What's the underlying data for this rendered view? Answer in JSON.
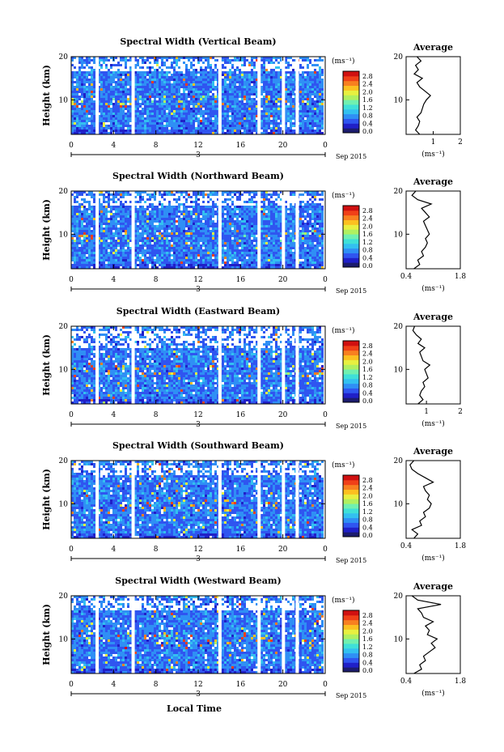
{
  "figure": {
    "xlabel": "Local Time",
    "date_label": "Sep 2015",
    "ylabel": "Height (km)",
    "average_title": "Average",
    "units": "(ms⁻¹)",
    "colorbar_ticks": [
      "2.8",
      "2.4",
      "2.0",
      "1.6",
      "1.2",
      "0.8",
      "0.4",
      "0.0"
    ],
    "colormap": [
      "#1c1c6e",
      "#2020c8",
      "#2f55f0",
      "#2f8ff5",
      "#33c0f0",
      "#3fe0d8",
      "#70f0b0",
      "#b0f060",
      "#e8f040",
      "#fcc020",
      "#f88020",
      "#f04018",
      "#d01010"
    ],
    "gap_color": "#ffffff"
  },
  "chart_data": [
    {
      "type": "heatmap",
      "title": "Spectral Width (Vertical Beam)",
      "xlabel": "Local Time",
      "ylabel": "Height (km)",
      "x_ticks": [
        "0",
        "4",
        "8",
        "12",
        "16",
        "20",
        "0"
      ],
      "y_ticks": [
        "20",
        "10"
      ],
      "day_marker": "3",
      "xlim": [
        0,
        24
      ],
      "ylim": [
        2,
        20
      ],
      "data_gaps_hours": [
        2.3,
        5.7,
        13.9,
        17.6,
        19.9,
        21.2
      ],
      "colorbar": {
        "label": "(ms⁻¹)",
        "ticks": [
          "2.8",
          "2.4",
          "2.0",
          "1.6",
          "1.2",
          "0.8",
          "0.4",
          "0.0"
        ]
      },
      "average": {
        "title": "Average",
        "xlabel": "(ms⁻¹)",
        "xticks": [
          "1",
          "2"
        ],
        "xlim": [
          0.0,
          2.0
        ],
        "yticks": [
          "20",
          "10"
        ],
        "height_km": [
          2,
          3,
          4,
          5,
          6,
          7,
          8,
          9,
          10,
          11,
          12,
          13,
          14,
          15,
          16,
          17,
          18,
          19,
          20
        ],
        "width_ms": [
          0.5,
          0.35,
          0.45,
          0.5,
          0.4,
          0.55,
          0.6,
          0.65,
          0.75,
          0.9,
          0.7,
          0.5,
          0.4,
          0.6,
          0.3,
          0.45,
          0.35,
          0.55,
          0.4
        ]
      }
    },
    {
      "type": "heatmap",
      "title": "Spectral Width (Northward Beam)",
      "xlabel": "Local Time",
      "ylabel": "Height (km)",
      "x_ticks": [
        "0",
        "4",
        "8",
        "12",
        "16",
        "20",
        "0"
      ],
      "y_ticks": [
        "20",
        "10"
      ],
      "day_marker": "3",
      "xlim": [
        0,
        24
      ],
      "ylim": [
        2,
        20
      ],
      "data_gaps_hours": [
        2.3,
        5.7,
        13.9,
        17.6,
        19.9,
        21.2
      ],
      "colorbar": {
        "label": "(ms⁻¹)",
        "ticks": [
          "2.8",
          "2.4",
          "2.0",
          "1.6",
          "1.2",
          "0.8",
          "0.4",
          "0.0"
        ]
      },
      "average": {
        "title": "Average",
        "xlabel": "(ms⁻¹)",
        "xticks": [
          "0.4",
          "1.8"
        ],
        "xlim": [
          0.4,
          1.8
        ],
        "yticks": [
          "20",
          "10"
        ],
        "height_km": [
          2,
          3,
          4,
          5,
          6,
          7,
          8,
          9,
          10,
          11,
          12,
          13,
          14,
          15,
          16,
          17,
          18,
          19,
          20
        ],
        "width_ms": [
          0.6,
          0.75,
          0.7,
          0.85,
          0.8,
          0.9,
          0.95,
          0.9,
          1.0,
          0.95,
          0.9,
          0.85,
          1.0,
          0.9,
          0.8,
          1.05,
          0.7,
          0.55,
          0.65
        ]
      }
    },
    {
      "type": "heatmap",
      "title": "Spectral Width (Eastward Beam)",
      "xlabel": "Local Time",
      "ylabel": "Height (km)",
      "x_ticks": [
        "0",
        "4",
        "8",
        "12",
        "16",
        "20",
        "0"
      ],
      "y_ticks": [
        "20",
        "10"
      ],
      "day_marker": "3",
      "xlim": [
        0,
        24
      ],
      "ylim": [
        2,
        20
      ],
      "data_gaps_hours": [
        2.3,
        5.7,
        13.9,
        17.6,
        19.9,
        21.2
      ],
      "colorbar": {
        "label": "(ms⁻¹)",
        "ticks": [
          "2.8",
          "2.4",
          "2.0",
          "1.6",
          "1.2",
          "0.8",
          "0.4",
          "0.0"
        ]
      },
      "average": {
        "title": "Average",
        "xlabel": "(ms⁻¹)",
        "xticks": [
          "1",
          "2"
        ],
        "xlim": [
          0.4,
          2.0
        ],
        "yticks": [
          "20",
          "10"
        ],
        "height_km": [
          2,
          3,
          4,
          5,
          6,
          7,
          8,
          9,
          10,
          11,
          12,
          13,
          14,
          15,
          16,
          17,
          18,
          19,
          20
        ],
        "width_ms": [
          0.75,
          0.9,
          0.8,
          0.85,
          0.95,
          0.9,
          1.05,
          1.0,
          0.95,
          1.1,
          0.9,
          0.85,
          0.8,
          0.95,
          0.75,
          0.85,
          0.7,
          0.6,
          0.65
        ]
      }
    },
    {
      "type": "heatmap",
      "title": "Spectral Width (Southward Beam)",
      "xlabel": "Local Time",
      "ylabel": "Height (km)",
      "x_ticks": [
        "0",
        "4",
        "8",
        "12",
        "16",
        "20",
        "0"
      ],
      "y_ticks": [
        "20",
        "10"
      ],
      "day_marker": "3",
      "xlim": [
        0,
        24
      ],
      "ylim": [
        2,
        20
      ],
      "data_gaps_hours": [
        2.3,
        5.7,
        13.9,
        17.6,
        19.9,
        21.2
      ],
      "colorbar": {
        "label": "(ms⁻¹)",
        "ticks": [
          "2.8",
          "2.4",
          "2.0",
          "1.6",
          "1.2",
          "0.8",
          "0.4",
          "0.0"
        ]
      },
      "average": {
        "title": "Average",
        "xlabel": "(ms⁻¹)",
        "xticks": [
          "0.4",
          "1.8"
        ],
        "xlim": [
          0.4,
          1.8
        ],
        "yticks": [
          "20",
          "10"
        ],
        "height_km": [
          2,
          3,
          4,
          5,
          6,
          7,
          8,
          9,
          10,
          11,
          12,
          13,
          14,
          15,
          16,
          17,
          18,
          19,
          20
        ],
        "width_ms": [
          0.6,
          0.7,
          0.55,
          0.8,
          0.75,
          0.9,
          0.85,
          1.0,
          1.05,
          0.95,
          1.0,
          0.9,
          0.85,
          1.1,
          0.9,
          0.7,
          0.55,
          0.5,
          0.6
        ]
      }
    },
    {
      "type": "heatmap",
      "title": "Spectral Width (Westward Beam)",
      "xlabel": "Local Time",
      "ylabel": "Height (km)",
      "x_ticks": [
        "0",
        "4",
        "8",
        "12",
        "16",
        "20",
        "0"
      ],
      "y_ticks": [
        "20",
        "10"
      ],
      "day_marker": "3",
      "xlim": [
        0,
        24
      ],
      "ylim": [
        2,
        20
      ],
      "data_gaps_hours": [
        2.3,
        5.7,
        13.9,
        17.6,
        19.9,
        21.2
      ],
      "colorbar": {
        "label": "(ms⁻¹)",
        "ticks": [
          "2.8",
          "2.4",
          "2.0",
          "1.6",
          "1.2",
          "0.8",
          "0.4",
          "0.0"
        ]
      },
      "average": {
        "title": "Average",
        "xlabel": "(ms⁻¹)",
        "xticks": [
          "0.4",
          "1.8"
        ],
        "xlim": [
          0.4,
          1.8
        ],
        "yticks": [
          "20",
          "10"
        ],
        "height_km": [
          2,
          3,
          4,
          5,
          6,
          7,
          8,
          9,
          10,
          11,
          12,
          13,
          14,
          15,
          16,
          17,
          18,
          19,
          20
        ],
        "width_ms": [
          0.6,
          0.8,
          0.75,
          0.9,
          0.85,
          1.0,
          1.15,
          1.05,
          1.2,
          0.95,
          1.0,
          0.9,
          1.1,
          0.85,
          0.8,
          0.7,
          1.3,
          0.7,
          0.55
        ]
      }
    }
  ]
}
